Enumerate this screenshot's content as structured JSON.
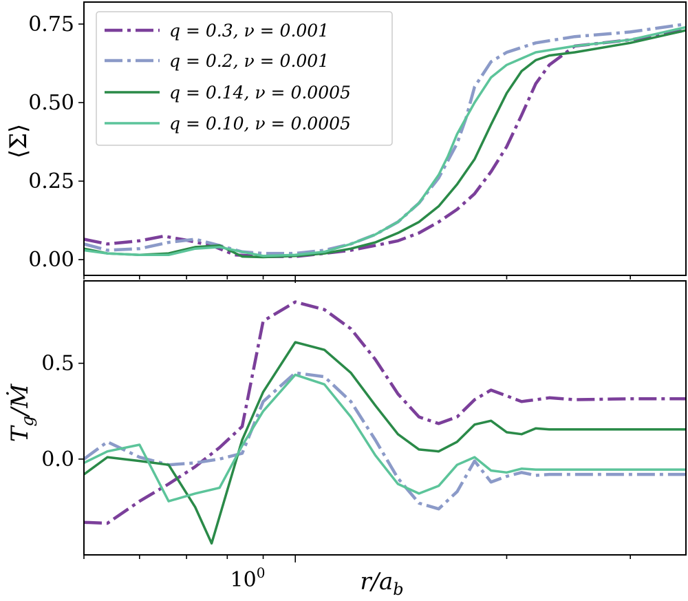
{
  "chart_data": [
    {
      "type": "line",
      "panel": "top",
      "xlabel": "",
      "ylabel": "⟨Σ⟩",
      "xscale": "log",
      "xlim": [
        0.5,
        3.6
      ],
      "ylim": [
        -0.05,
        0.82
      ],
      "yticks": [
        0.0,
        0.25,
        0.5,
        0.75
      ],
      "ytick_labels": [
        "0.00",
        "0.25",
        "0.50",
        "0.75"
      ],
      "legend": {
        "placement": "upper-left",
        "entries": [
          "q = 0.3,  ν = 0.001",
          "q = 0.2,  ν = 0.001",
          "q = 0.14,  ν = 0.0005",
          "q = 0.10,  ν = 0.0005"
        ]
      },
      "series": [
        {
          "name": "q = 0.3,  ν = 0.001",
          "color": "#7b3f9a",
          "style": "dashdot",
          "x": [
            0.5,
            0.54,
            0.6,
            0.65,
            0.7,
            0.76,
            0.82,
            0.9,
            1.0,
            1.1,
            1.2,
            1.3,
            1.4,
            1.5,
            1.6,
            1.7,
            1.8,
            1.9,
            2.0,
            2.1,
            2.2,
            2.3,
            2.5,
            3.0,
            3.6
          ],
          "y": [
            0.065,
            0.05,
            0.06,
            0.075,
            0.062,
            0.045,
            0.015,
            0.01,
            0.01,
            0.02,
            0.03,
            0.045,
            0.06,
            0.085,
            0.12,
            0.16,
            0.21,
            0.28,
            0.36,
            0.46,
            0.56,
            0.62,
            0.68,
            0.7,
            0.73
          ]
        },
        {
          "name": "q = 0.2,  ν = 0.001",
          "color": "#8b9ac8",
          "style": "dashdot",
          "x": [
            0.5,
            0.54,
            0.6,
            0.66,
            0.72,
            0.78,
            0.84,
            0.9,
            1.0,
            1.1,
            1.2,
            1.3,
            1.4,
            1.5,
            1.6,
            1.7,
            1.75,
            1.8,
            1.9,
            2.0,
            2.2,
            2.5,
            3.0,
            3.6
          ],
          "y": [
            0.05,
            0.03,
            0.035,
            0.055,
            0.065,
            0.045,
            0.025,
            0.02,
            0.02,
            0.03,
            0.05,
            0.08,
            0.12,
            0.18,
            0.26,
            0.37,
            0.45,
            0.55,
            0.63,
            0.66,
            0.69,
            0.71,
            0.725,
            0.75
          ]
        },
        {
          "name": "q = 0.14,  ν = 0.0005",
          "color": "#2a8a48",
          "style": "solid",
          "x": [
            0.5,
            0.54,
            0.6,
            0.66,
            0.72,
            0.78,
            0.84,
            0.9,
            1.0,
            1.1,
            1.2,
            1.3,
            1.4,
            1.5,
            1.6,
            1.7,
            1.8,
            1.9,
            2.0,
            2.1,
            2.2,
            2.3,
            2.5,
            3.0,
            3.6
          ],
          "y": [
            0.035,
            0.02,
            0.015,
            0.02,
            0.04,
            0.045,
            0.01,
            0.008,
            0.012,
            0.02,
            0.035,
            0.055,
            0.085,
            0.12,
            0.17,
            0.24,
            0.32,
            0.43,
            0.53,
            0.6,
            0.635,
            0.65,
            0.66,
            0.69,
            0.73
          ]
        },
        {
          "name": "q = 0.10,  ν = 0.0005",
          "color": "#5cc49a",
          "style": "solid",
          "x": [
            0.5,
            0.54,
            0.6,
            0.66,
            0.72,
            0.78,
            0.84,
            0.9,
            1.0,
            1.1,
            1.2,
            1.3,
            1.4,
            1.5,
            1.6,
            1.65,
            1.7,
            1.8,
            1.9,
            2.0,
            2.2,
            2.5,
            3.0,
            3.6
          ],
          "y": [
            0.03,
            0.02,
            0.015,
            0.015,
            0.035,
            0.04,
            0.025,
            0.012,
            0.015,
            0.025,
            0.05,
            0.08,
            0.12,
            0.18,
            0.27,
            0.33,
            0.4,
            0.5,
            0.58,
            0.62,
            0.66,
            0.68,
            0.7,
            0.74
          ]
        }
      ]
    },
    {
      "type": "line",
      "panel": "bottom",
      "xlabel": "r/a_b",
      "xlabel_main": "r/a",
      "xlabel_sub": "b",
      "ylabel": "T_g/Ṁ",
      "ylabel_main": "T",
      "ylabel_sub": "g",
      "ylabel_tail": "/Ṁ",
      "xscale": "log",
      "xlim": [
        0.5,
        3.6
      ],
      "ylim": [
        -0.5,
        0.93
      ],
      "yticks": [
        0.0,
        0.5
      ],
      "ytick_labels": [
        "0.0",
        "0.5"
      ],
      "xticks_major": [
        1.0
      ],
      "xtick_label_base": "10",
      "xtick_label_exp": "0",
      "series": [
        {
          "name": "q = 0.3,  ν = 0.001",
          "color": "#7b3f9a",
          "style": "dashdot",
          "x": [
            0.5,
            0.54,
            0.6,
            0.66,
            0.72,
            0.78,
            0.84,
            0.9,
            1.0,
            1.1,
            1.2,
            1.3,
            1.4,
            1.5,
            1.6,
            1.7,
            1.8,
            1.9,
            2.0,
            2.1,
            2.2,
            2.3,
            2.5,
            3.0,
            3.6
          ],
          "y": [
            -0.33,
            -0.335,
            -0.22,
            -0.13,
            -0.04,
            0.06,
            0.17,
            0.72,
            0.82,
            0.78,
            0.68,
            0.52,
            0.34,
            0.22,
            0.185,
            0.22,
            0.31,
            0.36,
            0.33,
            0.3,
            0.31,
            0.32,
            0.31,
            0.315,
            0.315
          ]
        },
        {
          "name": "q = 0.2,  ν = 0.001",
          "color": "#8b9ac8",
          "style": "dashdot",
          "x": [
            0.5,
            0.54,
            0.6,
            0.66,
            0.72,
            0.78,
            0.84,
            0.9,
            1.0,
            1.1,
            1.2,
            1.3,
            1.4,
            1.5,
            1.6,
            1.7,
            1.8,
            1.9,
            2.0,
            2.1,
            2.2,
            2.3,
            2.5,
            3.0,
            3.6
          ],
          "y": [
            0.0,
            0.09,
            0.01,
            -0.03,
            -0.02,
            0.0,
            0.03,
            0.3,
            0.45,
            0.43,
            0.3,
            0.1,
            -0.1,
            -0.23,
            -0.26,
            -0.17,
            -0.01,
            -0.12,
            -0.09,
            -0.07,
            -0.085,
            -0.08,
            -0.08,
            -0.08,
            -0.08
          ]
        },
        {
          "name": "q = 0.14,  ν = 0.0005",
          "color": "#2a8a48",
          "style": "solid",
          "x": [
            0.5,
            0.54,
            0.6,
            0.66,
            0.72,
            0.76,
            0.84,
            0.9,
            1.0,
            1.1,
            1.2,
            1.3,
            1.4,
            1.5,
            1.6,
            1.7,
            1.8,
            1.9,
            2.0,
            2.1,
            2.2,
            2.3,
            2.5,
            3.0,
            3.6
          ],
          "y": [
            -0.08,
            0.01,
            -0.01,
            -0.03,
            -0.25,
            -0.44,
            0.1,
            0.35,
            0.61,
            0.57,
            0.45,
            0.28,
            0.13,
            0.05,
            0.04,
            0.09,
            0.18,
            0.2,
            0.14,
            0.13,
            0.16,
            0.155,
            0.155,
            0.155,
            0.155
          ]
        },
        {
          "name": "q = 0.10,  ν = 0.0005",
          "color": "#5cc49a",
          "style": "solid",
          "x": [
            0.5,
            0.54,
            0.6,
            0.66,
            0.72,
            0.78,
            0.84,
            0.9,
            1.0,
            1.1,
            1.2,
            1.3,
            1.4,
            1.5,
            1.6,
            1.7,
            1.8,
            1.9,
            2.0,
            2.1,
            2.2,
            2.3,
            2.5,
            3.0,
            3.6
          ],
          "y": [
            -0.02,
            0.04,
            0.075,
            -0.22,
            -0.18,
            -0.15,
            0.07,
            0.25,
            0.44,
            0.39,
            0.22,
            0.02,
            -0.13,
            -0.18,
            -0.14,
            -0.03,
            0.01,
            -0.06,
            -0.07,
            -0.05,
            -0.055,
            -0.055,
            -0.055,
            -0.055,
            -0.055
          ]
        }
      ]
    }
  ]
}
